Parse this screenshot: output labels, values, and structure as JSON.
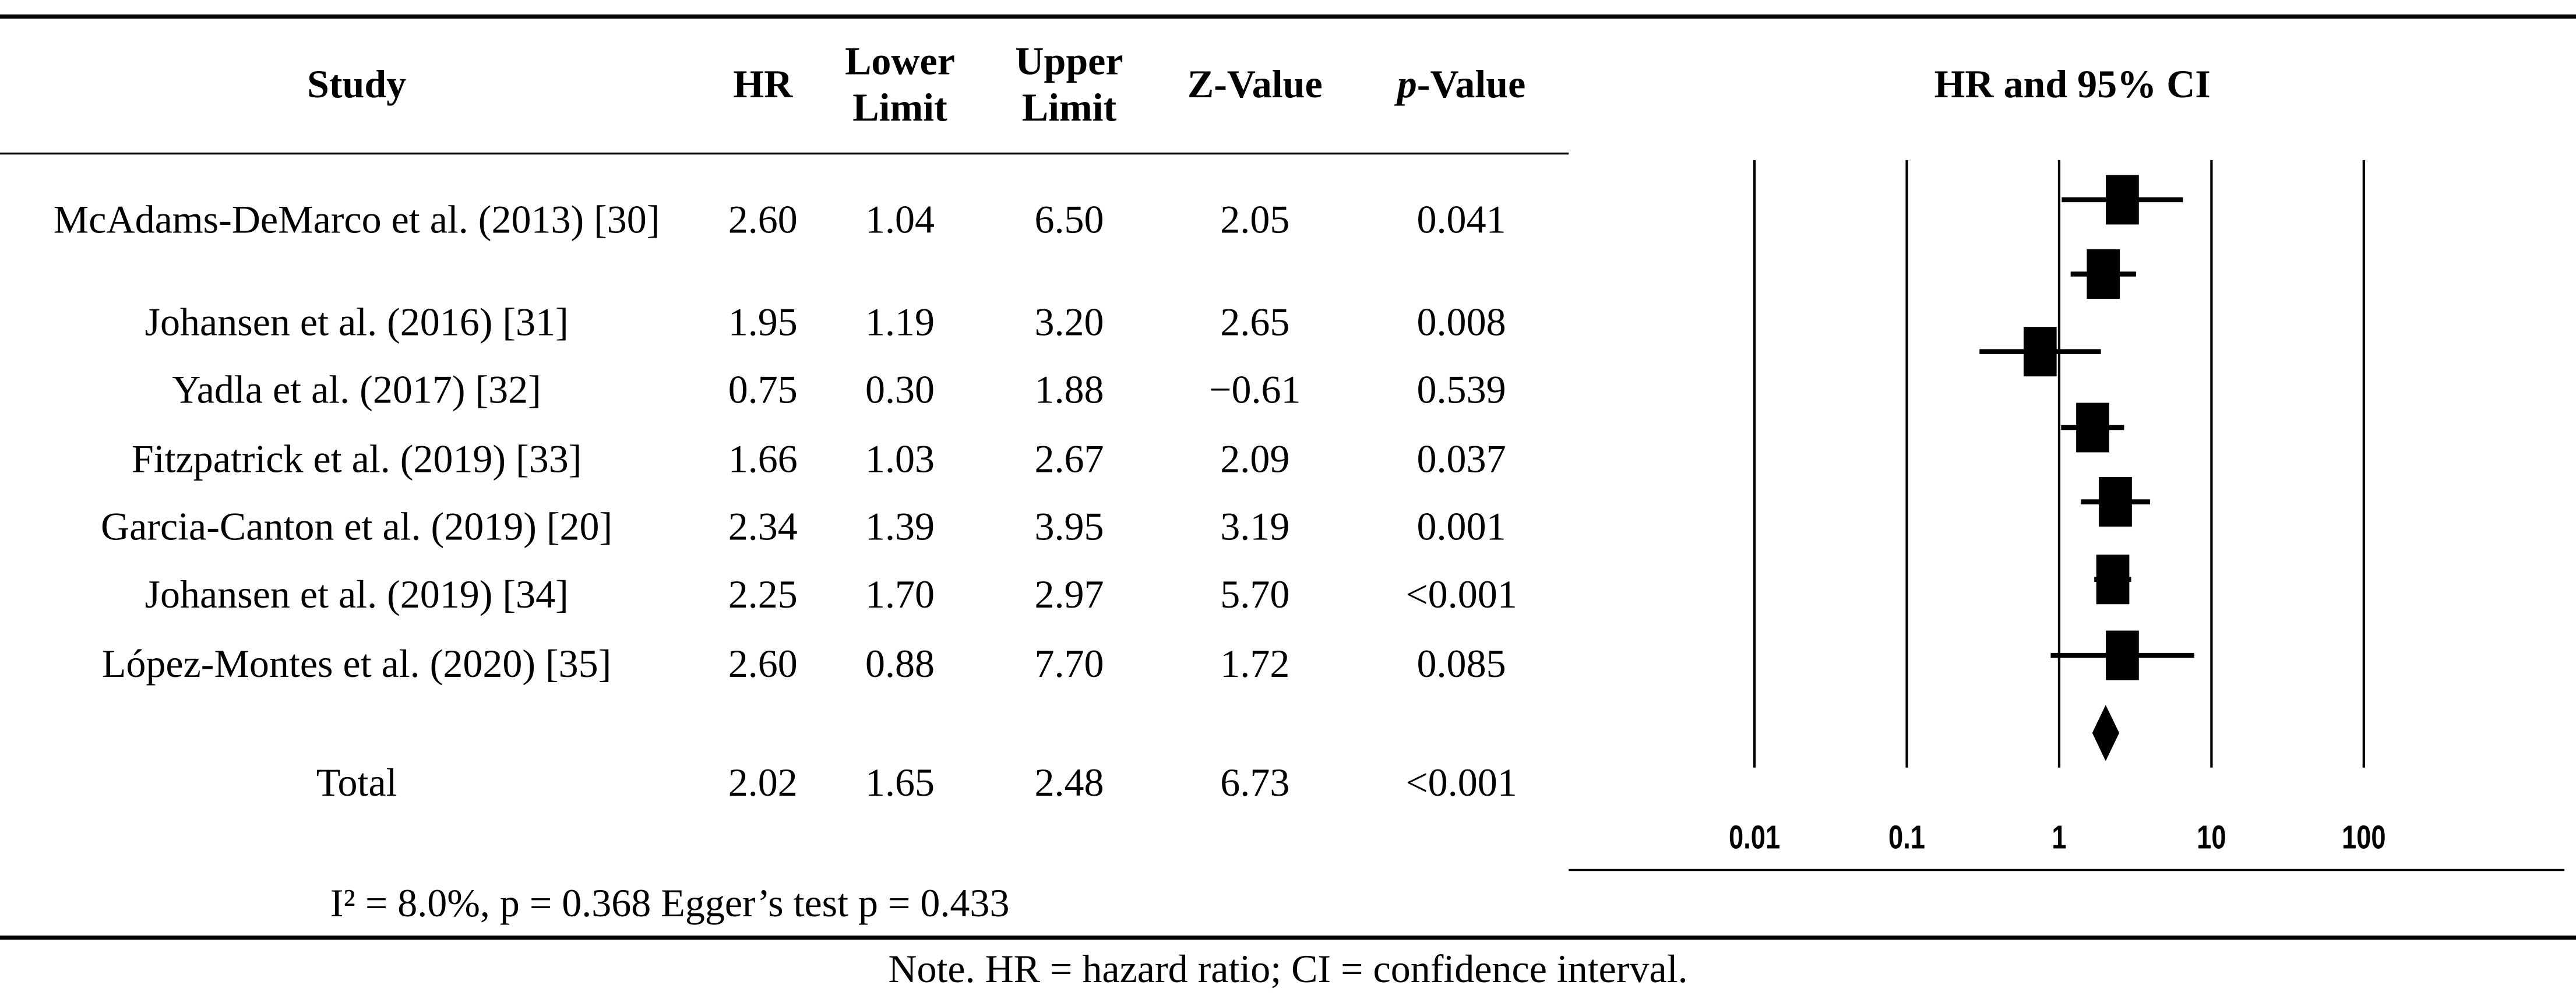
{
  "table": {
    "header": [
      "Study",
      "HR",
      "Lower Limit",
      "Upper Limit",
      "Z-Value",
      "p-Value"
    ],
    "plot_title": "HR and 95% CI",
    "rows": [
      [
        "McAdams-DeMarco et al. (2013) [30]",
        "2.60",
        "1.04",
        "6.50",
        "2.05",
        "0.041"
      ],
      [
        "Johansen et al. (2016) [31]",
        "1.95",
        "1.19",
        "3.20",
        "2.65",
        "0.008"
      ],
      [
        "Yadla et al. (2017) [32]",
        "0.75",
        "0.30",
        "1.88",
        "−0.61",
        "0.539"
      ],
      [
        "Fitzpatrick et al. (2019) [33]",
        "1.66",
        "1.03",
        "2.67",
        "2.09",
        "0.037"
      ],
      [
        "Garcia-Canton et al. (2019) [20]",
        "2.34",
        "1.39",
        "3.95",
        "3.19",
        "0.001"
      ],
      [
        "Johansen et al. (2019) [34]",
        "2.25",
        "1.70",
        "2.97",
        "5.70",
        "<0.001"
      ],
      [
        "López-Montes et al. (2020) [35]",
        "2.60",
        "0.88",
        "7.70",
        "1.72",
        "0.085"
      ]
    ],
    "total": [
      "Total",
      "2.02",
      "1.65",
      "2.48",
      "6.73",
      "<0.001"
    ],
    "footnote": "I² = 8.0%, p = 0.368 Egger’s test p = 0.433",
    "note": "Note. HR = hazard ratio; CI = confidence interval."
  },
  "forest": {
    "log_scale": true,
    "xticks": [
      0.01,
      0.1,
      1,
      10,
      100
    ]
  }
}
